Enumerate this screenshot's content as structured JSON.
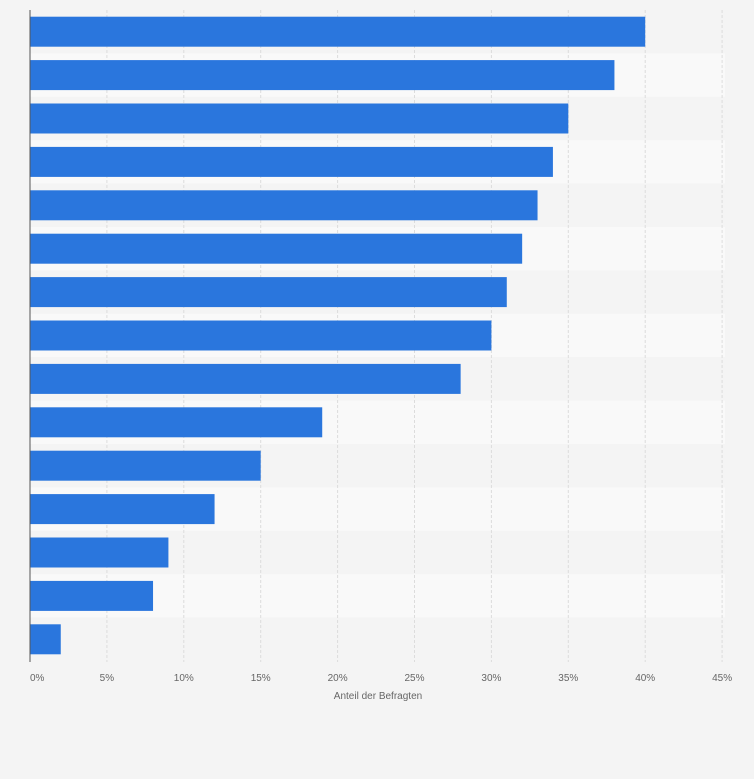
{
  "chart_data": {
    "type": "bar",
    "orientation": "horizontal",
    "xlabel": "Anteil der Befragten",
    "ylabel": "",
    "xlim": [
      0,
      45
    ],
    "ticks": [
      0,
      5,
      10,
      15,
      20,
      25,
      30,
      35,
      40,
      45
    ],
    "tick_labels": [
      "0%",
      "5%",
      "10%",
      "15%",
      "20%",
      "25%",
      "30%",
      "35%",
      "40%",
      "45%"
    ],
    "values": [
      40,
      38,
      35,
      34,
      33,
      32,
      31,
      30,
      28,
      19,
      15,
      12,
      9,
      8,
      2
    ],
    "grid": true,
    "bar_color": "#2a76dd"
  }
}
